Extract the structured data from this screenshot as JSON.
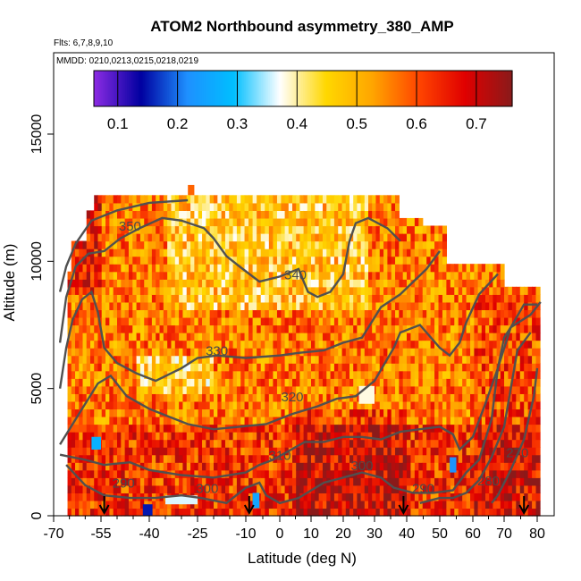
{
  "chart_data": {
    "type": "heatmap",
    "title": "ATOM2 Northbound asymmetry_380_AMP",
    "flights_note": "Flts: 6,7,8,9,10",
    "dates_note": "MMDD: 0210,0213,0215,0218,0219",
    "xlabel": "Latitude (deg N)",
    "ylabel": "Altitude (m)",
    "xlim": [
      -70,
      85
    ],
    "ylim": [
      0,
      17500
    ],
    "x_ticks": [
      -70,
      -55,
      -40,
      -25,
      -10,
      0,
      10,
      20,
      30,
      40,
      50,
      60,
      70,
      80
    ],
    "x_tick_labels": [
      "-70",
      "-55",
      "-40",
      "-25",
      "-10",
      "0",
      "10",
      "20",
      "30",
      "40",
      "50",
      "60",
      "70",
      "80"
    ],
    "y_ticks": [
      0,
      5000,
      10000,
      15000
    ],
    "y_tick_labels": [
      "0",
      "5000",
      "10000",
      "15000"
    ],
    "colorbar": {
      "min": 0.06,
      "max": 0.76,
      "ticks": [
        0.1,
        0.2,
        0.3,
        0.4,
        0.5,
        0.6,
        0.7
      ],
      "tick_labels": [
        "0.1",
        "0.2",
        "0.3",
        "0.4",
        "0.5",
        "0.6",
        "0.7"
      ],
      "colors": [
        "#8a2be2",
        "#0000a0",
        "#1e90ff",
        "#00bfff",
        "#ffffff",
        "#ffd700",
        "#ffa500",
        "#ff4500",
        "#e00000",
        "#8b1a1a"
      ]
    },
    "contour_labels": [
      {
        "text": "350",
        "x": -46,
        "y": 11200
      },
      {
        "text": "340",
        "x": 5,
        "y": 9300
      },
      {
        "text": "330",
        "x": -19,
        "y": 6300
      },
      {
        "text": "320",
        "x": 4,
        "y": 4500
      },
      {
        "text": "310",
        "x": 0,
        "y": 2200
      },
      {
        "text": "300",
        "x": -22,
        "y": 900
      },
      {
        "text": "300",
        "x": 26,
        "y": 1800
      },
      {
        "text": "290",
        "x": -48,
        "y": 1100
      },
      {
        "text": "290",
        "x": 45,
        "y": 900
      },
      {
        "text": "280",
        "x": 65,
        "y": 1200
      },
      {
        "text": "270",
        "x": 74,
        "y": 2300
      }
    ],
    "profile_arrows_lat": [
      -54,
      -9,
      39,
      76
    ],
    "grid": false
  }
}
